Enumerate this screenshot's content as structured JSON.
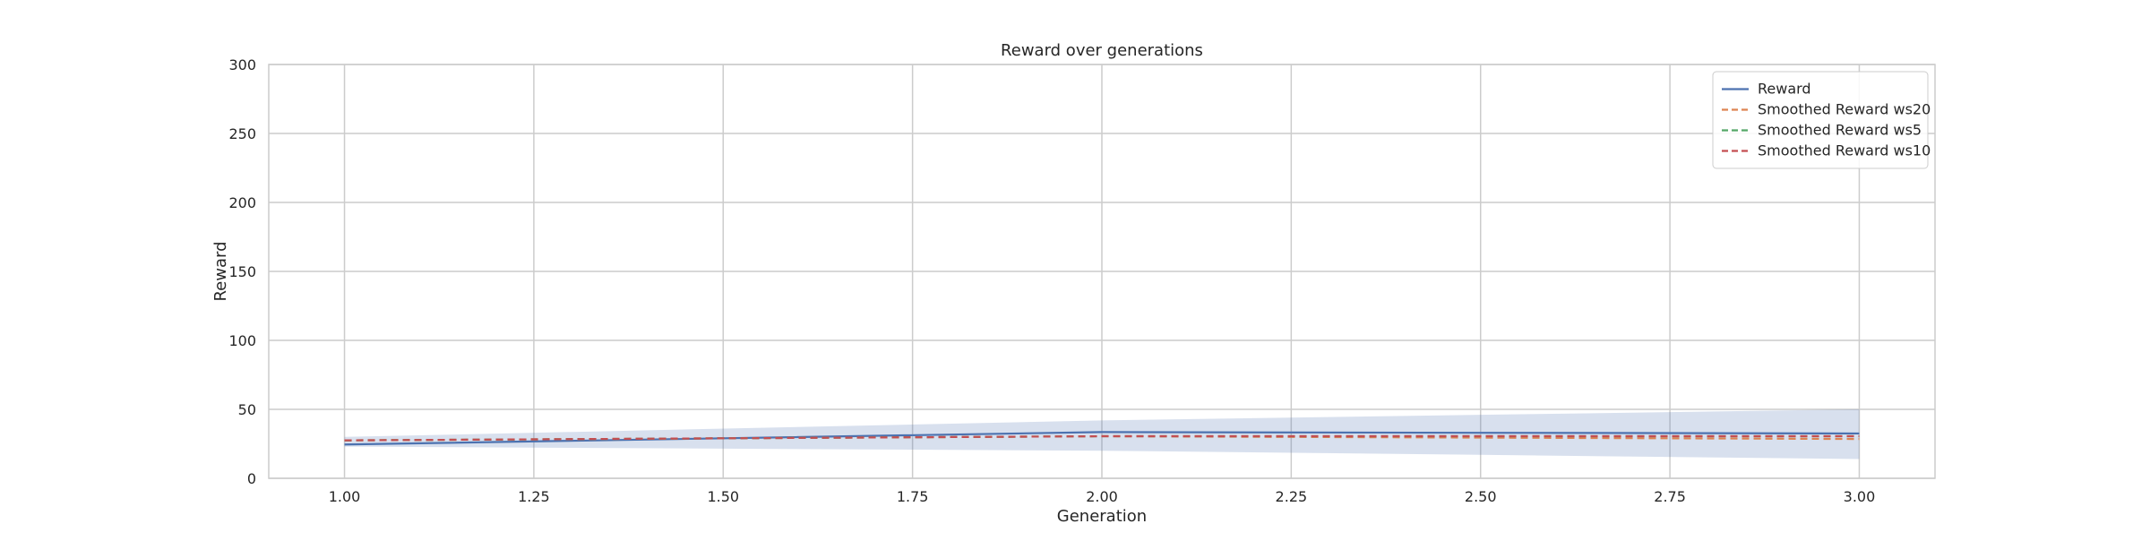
{
  "chart_data": {
    "type": "line",
    "title": "Reward over generations",
    "xlabel": "Generation",
    "ylabel": "Reward",
    "xlim": [
      0.9,
      3.1
    ],
    "ylim": [
      0,
      300
    ],
    "xticks": [
      1.0,
      1.25,
      1.5,
      1.75,
      2.0,
      2.25,
      2.5,
      2.75,
      3.0
    ],
    "xtick_labels": [
      "1.00",
      "1.25",
      "1.50",
      "1.75",
      "2.00",
      "2.25",
      "2.50",
      "2.75",
      "3.00"
    ],
    "yticks": [
      0,
      50,
      100,
      150,
      200,
      250,
      300
    ],
    "ytick_labels": [
      "0",
      "50",
      "100",
      "150",
      "200",
      "250",
      "300"
    ],
    "grid": true,
    "legend_position": "top-right",
    "x": [
      1,
      2,
      3
    ],
    "band": {
      "series": "Reward",
      "lower": [
        23,
        20,
        14
      ],
      "upper": [
        30,
        42,
        50
      ],
      "color": "#4c72b0",
      "opacity": 0.22
    },
    "series": [
      {
        "name": "Reward",
        "values": [
          24.5,
          33.5,
          32.5
        ],
        "color": "#4c72b0",
        "style": "solid"
      },
      {
        "name": "Smoothed Reward ws20",
        "values": [
          27.5,
          30.5,
          28.5
        ],
        "color": "#dd8452",
        "style": "dashed"
      },
      {
        "name": "Smoothed Reward ws5",
        "values": [
          27.5,
          30.5,
          30.5
        ],
        "color": "#55a868",
        "style": "dashed"
      },
      {
        "name": "Smoothed Reward ws10",
        "values": [
          27.5,
          30.5,
          30.5
        ],
        "color": "#c44e52",
        "style": "dashed"
      }
    ],
    "colors": {
      "grid": "#cccccc",
      "spine": "#cccccc",
      "legend_border": "#cccccc",
      "text": "#262626"
    }
  }
}
